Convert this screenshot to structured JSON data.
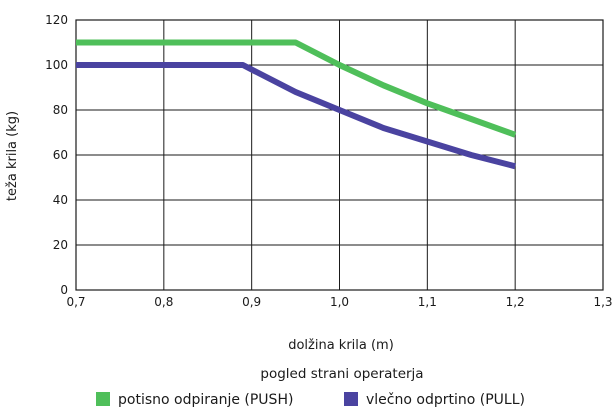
{
  "chart_data": {
    "type": "line",
    "title": "",
    "xlabel": "dolžina krila (m)",
    "ylabel": "teža krila (kg)",
    "caption": "pogled strani operaterja",
    "xlim": [
      0.7,
      1.3
    ],
    "ylim": [
      0,
      120
    ],
    "xticks": [
      0.7,
      0.8,
      0.9,
      1.0,
      1.1,
      1.2,
      1.3
    ],
    "xtick_labels": [
      "0,7",
      "0,8",
      "0,9",
      "1,0",
      "1,1",
      "1,2",
      "1,3"
    ],
    "yticks": [
      0,
      20,
      40,
      60,
      80,
      100,
      120
    ],
    "ytick_labels": [
      "0",
      "20",
      "40",
      "60",
      "80",
      "100",
      "120"
    ],
    "grid": true,
    "legend_position": "bottom",
    "series": [
      {
        "name": "potisno odpiranje (PUSH)",
        "color": "#4fbf5a",
        "x": [
          0.7,
          0.95,
          1.0,
          1.05,
          1.1,
          1.15,
          1.2
        ],
        "y": [
          110,
          110,
          100,
          91,
          83,
          76,
          69
        ]
      },
      {
        "name": "vlečno odprtino (PULL)",
        "color": "#4a43a0",
        "x": [
          0.7,
          0.89,
          0.95,
          1.0,
          1.05,
          1.1,
          1.15,
          1.2
        ],
        "y": [
          100,
          100,
          88,
          80,
          72,
          66,
          60,
          55
        ]
      }
    ]
  }
}
